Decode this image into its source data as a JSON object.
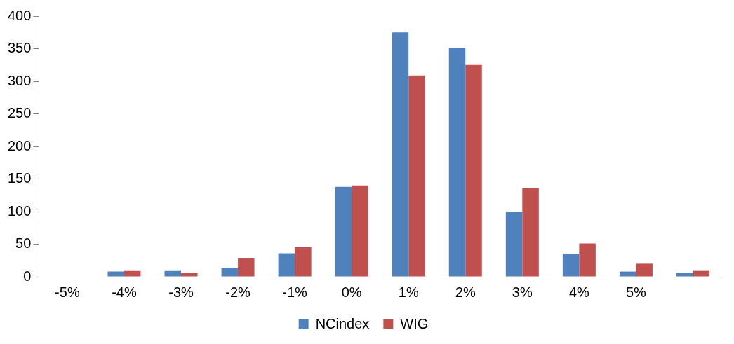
{
  "chart_data": {
    "type": "bar",
    "categories": [
      "-5%",
      "-4%",
      "-3%",
      "-2%",
      "-1%",
      "0%",
      "1%",
      "2%",
      "3%",
      "4%",
      "5%",
      null
    ],
    "series": [
      {
        "name": "NCindex",
        "color": "#4f81bd",
        "values": [
          0,
          8,
          9,
          13,
          36,
          138,
          375,
          351,
          100,
          35,
          8,
          6
        ]
      },
      {
        "name": "WIG",
        "color": "#c0504d",
        "values": [
          0,
          9,
          6,
          29,
          46,
          140,
          309,
          325,
          136,
          51,
          20,
          9
        ]
      }
    ],
    "ylim": [
      0,
      400
    ],
    "yticks": [
      0,
      50,
      100,
      150,
      200,
      250,
      300,
      350,
      400
    ],
    "grid": false,
    "legend": "bottom"
  }
}
